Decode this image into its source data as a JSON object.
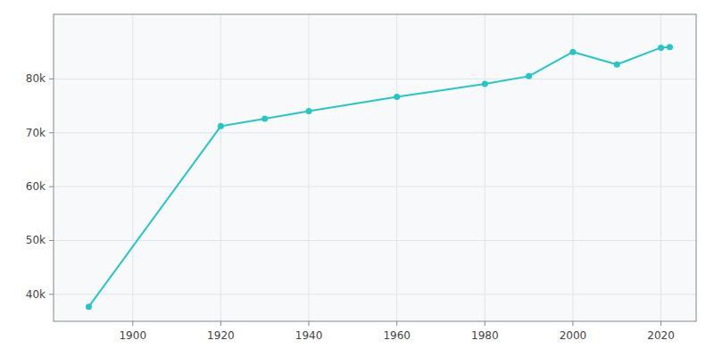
{
  "chart_data": {
    "type": "line",
    "x": [
      1890,
      1920,
      1930,
      1940,
      1960,
      1980,
      1990,
      2000,
      2010,
      2020,
      2022
    ],
    "values": [
      37712,
      71227,
      72596,
      74008,
      76655,
      79069,
      80505,
      85013,
      82684,
      85797,
      85925
    ],
    "color": "#26C6C6",
    "marker": "circle",
    "xlim": [
      1882,
      2028
    ],
    "ylim": [
      35000,
      92000
    ],
    "xticks": [
      1900,
      1920,
      1940,
      1960,
      1980,
      2000,
      2020
    ],
    "yticks": [
      {
        "value": 40000,
        "label": "40k"
      },
      {
        "value": 50000,
        "label": "50k"
      },
      {
        "value": 60000,
        "label": "60k"
      },
      {
        "value": 70000,
        "label": "70k"
      },
      {
        "value": 80000,
        "label": "80k"
      }
    ],
    "grid": true
  }
}
